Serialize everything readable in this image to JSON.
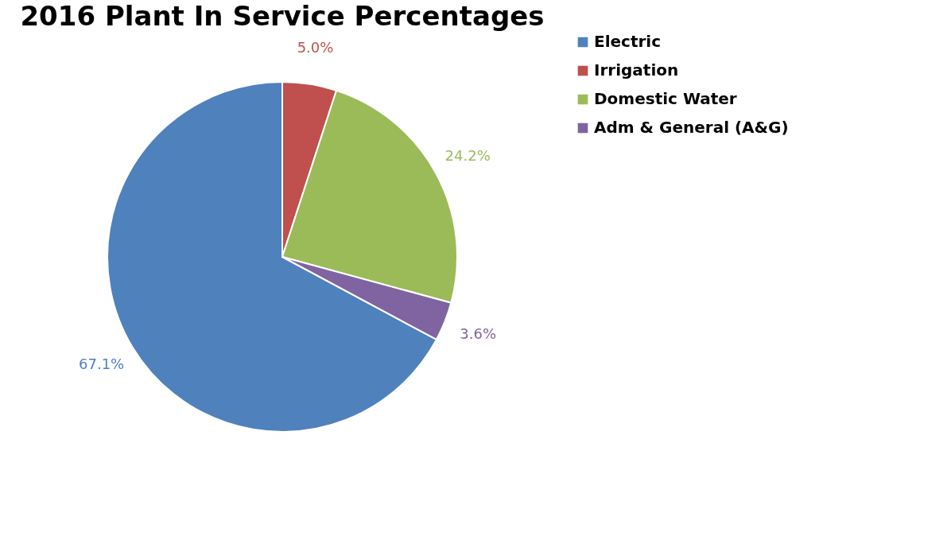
{
  "chart_data": {
    "type": "pie",
    "title": "2016 Plant In Service Percentages",
    "categories": [
      "Electric",
      "Irrigation",
      "Domestic Water",
      "Adm & General (A&G)"
    ],
    "values": [
      67.1,
      5.0,
      24.2,
      3.6
    ],
    "colors": [
      "#4f81bd",
      "#c0504d",
      "#9bbb59",
      "#8064a2"
    ],
    "value_labels": [
      "67.1%",
      "5.0%",
      "24.2%",
      "3.6%"
    ],
    "legend": "right"
  }
}
